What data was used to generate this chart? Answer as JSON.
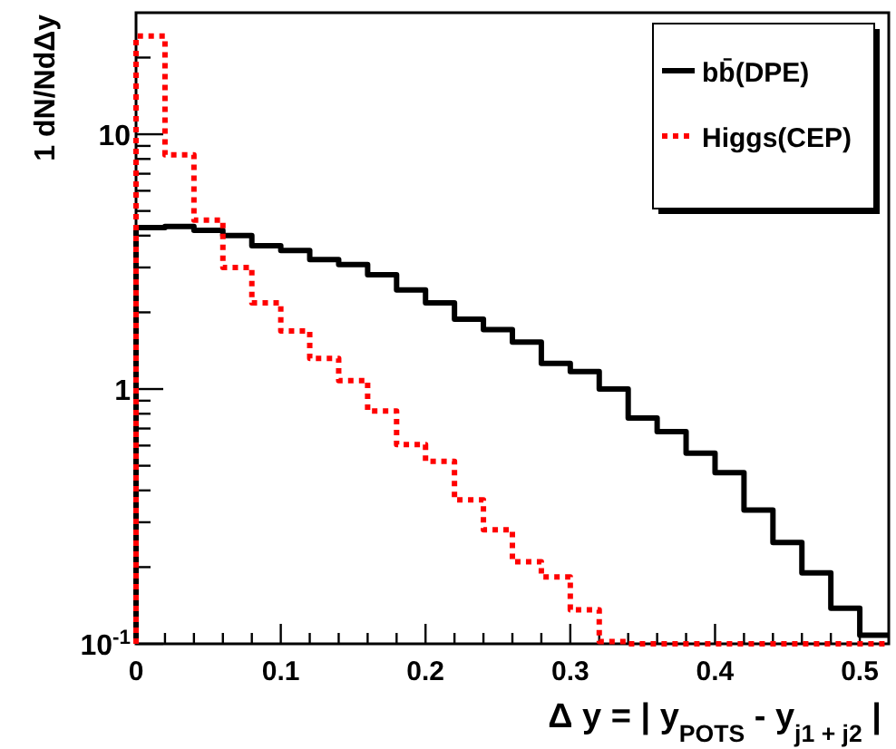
{
  "chart_data": {
    "type": "histogram",
    "xlabel": "Δ y = | y$_{POTS}$ - y$_{j1 + j2}$ |",
    "ylabel": "1 dN/NdΔy",
    "bins": [
      0,
      0.02,
      0.04,
      0.06,
      0.08,
      0.1,
      0.12,
      0.14,
      0.16,
      0.18,
      0.2,
      0.22,
      0.24,
      0.26,
      0.28,
      0.3,
      0.32,
      0.34,
      0.36,
      0.38,
      0.4,
      0.42,
      0.44,
      0.46,
      0.48,
      0.5,
      0.52
    ],
    "series": [
      {
        "name": "bb̄(DPE)",
        "color": "#000000",
        "line_style": "solid",
        "values": [
          4.3,
          4.35,
          4.2,
          4.0,
          3.65,
          3.5,
          3.22,
          3.08,
          2.81,
          2.45,
          2.18,
          1.88,
          1.71,
          1.53,
          1.26,
          1.17,
          1.0,
          0.77,
          0.68,
          0.56,
          0.47,
          0.335,
          0.25,
          0.19,
          0.138,
          0.108
        ]
      },
      {
        "name": "Higgs(CEP)",
        "color": "#ff0000",
        "line_style": "dotted",
        "values": [
          24.3,
          8.3,
          4.6,
          3.0,
          2.18,
          1.69,
          1.32,
          1.08,
          0.82,
          0.605,
          0.52,
          0.367,
          0.28,
          0.21,
          0.183,
          0.136,
          0.102,
          0.1,
          0.1,
          0.1,
          0.1,
          0.1,
          0.1,
          0.1,
          0.1,
          0.1
        ]
      }
    ],
    "log": "y",
    "xlim": [
      0,
      0.52
    ],
    "xticks": [
      0,
      {
        "value": 0.02,
        "label": null
      },
      {
        "value": 0.04,
        "label": null
      },
      {
        "value": 0.06,
        "label": null
      },
      {
        "value": 0.08,
        "label": null
      },
      0.1,
      {
        "value": 0.12,
        "label": null
      },
      {
        "value": 0.14,
        "label": null
      },
      {
        "value": 0.16,
        "label": null
      },
      {
        "value": 0.18,
        "label": null
      },
      0.2,
      {
        "value": 0.22,
        "label": null
      },
      {
        "value": 0.24,
        "label": null
      },
      {
        "value": 0.26,
        "label": null
      },
      {
        "value": 0.28,
        "label": null
      },
      0.3,
      {
        "value": 0.32,
        "label": null
      },
      {
        "value": 0.34,
        "label": null
      },
      {
        "value": 0.36,
        "label": null
      },
      {
        "value": 0.38,
        "label": null
      },
      0.4,
      {
        "value": 0.42,
        "label": null
      },
      {
        "value": 0.44,
        "label": null
      },
      {
        "value": 0.46,
        "label": null
      },
      {
        "value": 0.48,
        "label": null
      },
      0.5
    ],
    "ylim": [
      0.1,
      30
    ],
    "yticks": [
      {
        "value": 0.1,
        "label": "10$^{-1}$"
      },
      {
        "value": 0.2,
        "label": null
      },
      {
        "value": 0.3,
        "label": null
      },
      {
        "value": 0.4,
        "label": null
      },
      {
        "value": 0.5,
        "label": null
      },
      {
        "value": 0.6,
        "label": null
      },
      {
        "value": 0.7,
        "label": null
      },
      {
        "value": 0.8,
        "label": null
      },
      {
        "value": 0.9,
        "label": null
      },
      1,
      {
        "value": 2,
        "label": null
      },
      {
        "value": 3,
        "label": null
      },
      {
        "value": 4,
        "label": null
      },
      {
        "value": 5,
        "label": null
      },
      {
        "value": 6,
        "label": null
      },
      {
        "value": 7,
        "label": null
      },
      {
        "value": 8,
        "label": null
      },
      {
        "value": 9,
        "label": null
      },
      10,
      {
        "value": 20,
        "label": null
      }
    ],
    "grid": false,
    "legend": "top right"
  }
}
